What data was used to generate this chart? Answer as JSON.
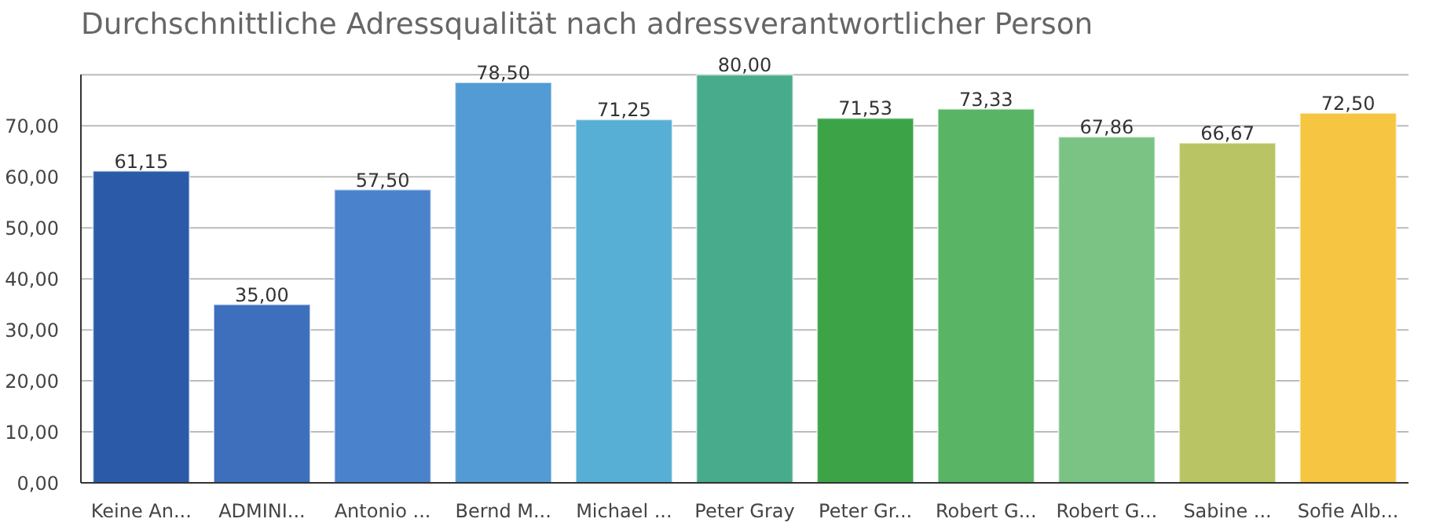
{
  "chart_data": {
    "type": "bar",
    "title": "Durchschnittliche Adressqualität nach adressverantwortlicher Person",
    "categories": [
      "Keine An...",
      "ADMINI...",
      "Antonio ...",
      "Bernd M...",
      "Michael ...",
      "Peter Gray",
      "Peter Gr...",
      "Robert G...",
      "Robert G...",
      "Sabine ...",
      "Sofie Alb..."
    ],
    "values": [
      61.15,
      35.0,
      57.5,
      78.5,
      71.25,
      80.0,
      71.53,
      73.33,
      67.86,
      66.67,
      72.5
    ],
    "value_labels": [
      "61,15",
      "35,00",
      "57,50",
      "78,50",
      "71,25",
      "80,00",
      "71,53",
      "73,33",
      "67,86",
      "66,67",
      "72,50"
    ],
    "colors": [
      "#2b5ba8",
      "#3d6fbd",
      "#4a82cb",
      "#529bd4",
      "#58afd5",
      "#48ab8c",
      "#3ca447",
      "#59b466",
      "#7bc385",
      "#b9c564",
      "#f6c541"
    ],
    "ylim": [
      0,
      80
    ],
    "yticks": [
      {
        "value": 0,
        "label": "0,00"
      },
      {
        "value": 10,
        "label": "10,00"
      },
      {
        "value": 20,
        "label": "20,00"
      },
      {
        "value": 30,
        "label": "30,00"
      },
      {
        "value": 40,
        "label": "40,00"
      },
      {
        "value": 50,
        "label": "50,00"
      },
      {
        "value": 60,
        "label": "60,00"
      },
      {
        "value": 70,
        "label": "70,00"
      },
      {
        "value": 80,
        "label": null
      }
    ],
    "grid": "y"
  }
}
